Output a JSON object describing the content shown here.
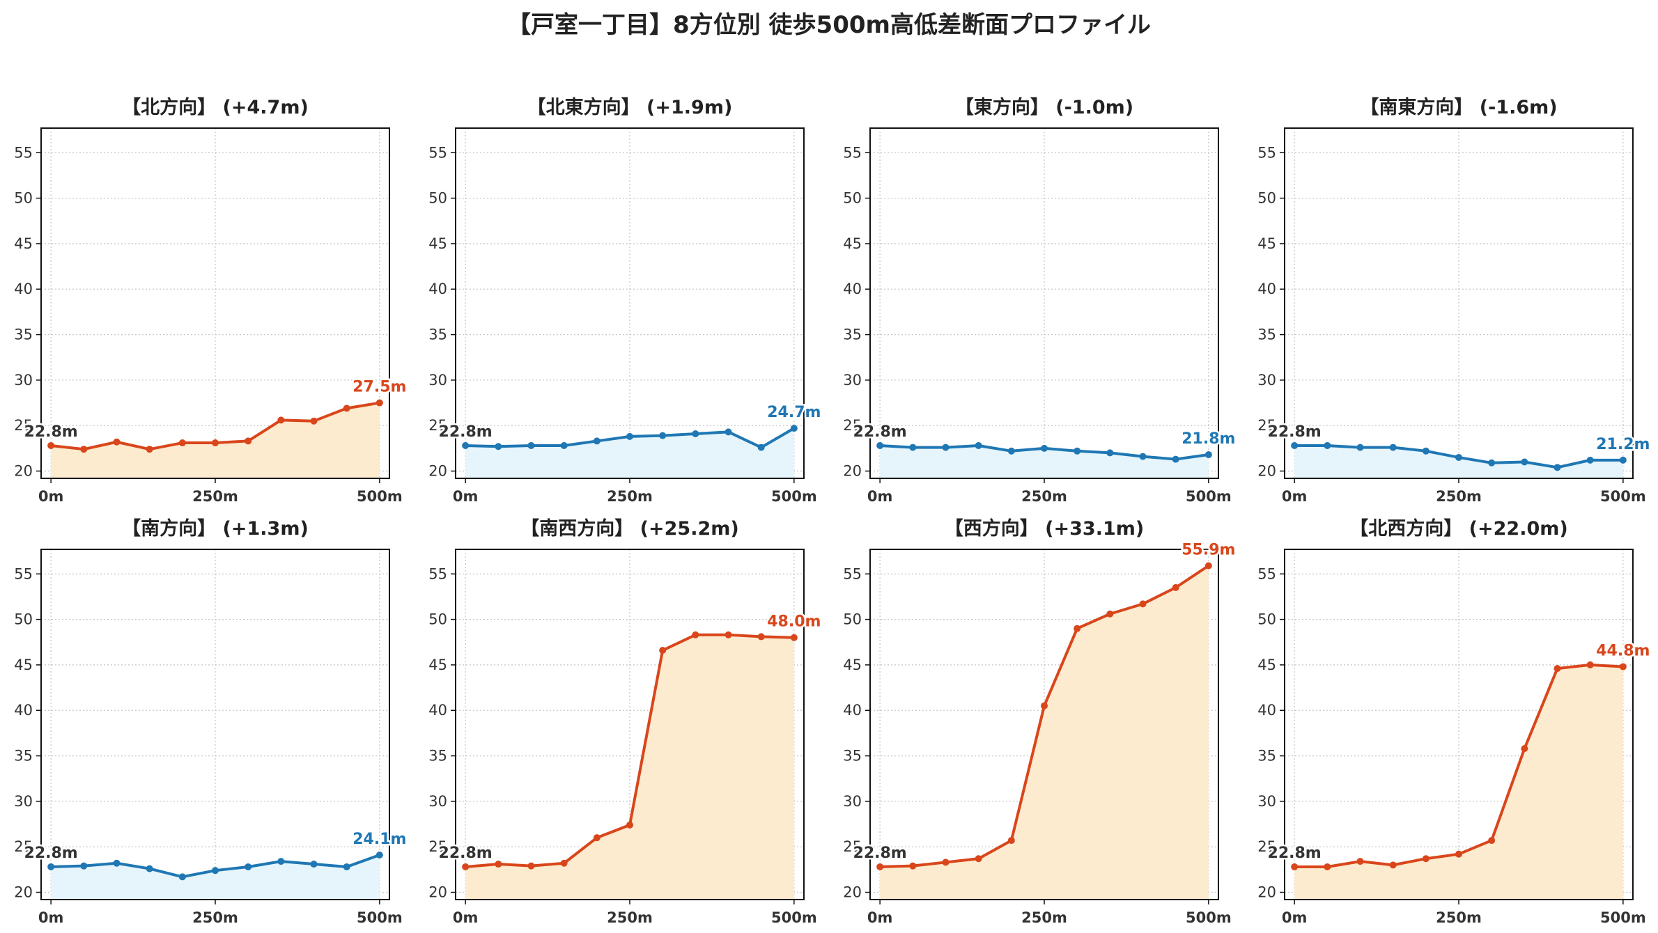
{
  "title": "【戸室一丁目】8方位別 徒歩500m高低差断面プロファイル",
  "colors": {
    "up_line": "#d9461b",
    "up_fill": "#fdebcf",
    "down_line": "#1f77b4",
    "down_fill": "#e6f5fb",
    "start_label": "#333333"
  },
  "chart_data": [
    {
      "type": "area",
      "title": "【北方向】 (+4.7m)",
      "trend": "up",
      "x": [
        0,
        50,
        100,
        150,
        200,
        250,
        300,
        350,
        400,
        450,
        500
      ],
      "y": [
        22.8,
        22.4,
        23.2,
        22.4,
        23.1,
        23.1,
        23.3,
        25.6,
        25.5,
        26.9,
        27.5
      ],
      "start_label": "22.8m",
      "end_label": "27.5m",
      "xticks": [
        0,
        250,
        500
      ],
      "xtick_labels": [
        "0m",
        "250m",
        "500m"
      ],
      "yticks": [
        20,
        25,
        30,
        35,
        40,
        45,
        50,
        55
      ],
      "xlim": [
        -15,
        515
      ],
      "ylim": [
        19.2,
        57.7
      ],
      "grid": true
    },
    {
      "type": "area",
      "title": "【北東方向】 (+1.9m)",
      "trend": "down",
      "x": [
        0,
        50,
        100,
        150,
        200,
        250,
        300,
        350,
        400,
        450,
        500
      ],
      "y": [
        22.8,
        22.7,
        22.8,
        22.8,
        23.3,
        23.8,
        23.9,
        24.1,
        24.3,
        22.6,
        24.7
      ],
      "start_label": "22.8m",
      "end_label": "24.7m",
      "xticks": [
        0,
        250,
        500
      ],
      "xtick_labels": [
        "0m",
        "250m",
        "500m"
      ],
      "yticks": [
        20,
        25,
        30,
        35,
        40,
        45,
        50,
        55
      ],
      "xlim": [
        -15,
        515
      ],
      "ylim": [
        19.2,
        57.7
      ],
      "grid": true
    },
    {
      "type": "area",
      "title": "【東方向】 (-1.0m)",
      "trend": "down",
      "x": [
        0,
        50,
        100,
        150,
        200,
        250,
        300,
        350,
        400,
        450,
        500
      ],
      "y": [
        22.8,
        22.6,
        22.6,
        22.8,
        22.2,
        22.5,
        22.2,
        22.0,
        21.6,
        21.3,
        21.8
      ],
      "start_label": "22.8m",
      "end_label": "21.8m",
      "xticks": [
        0,
        250,
        500
      ],
      "xtick_labels": [
        "0m",
        "250m",
        "500m"
      ],
      "yticks": [
        20,
        25,
        30,
        35,
        40,
        45,
        50,
        55
      ],
      "xlim": [
        -15,
        515
      ],
      "ylim": [
        19.2,
        57.7
      ],
      "grid": true
    },
    {
      "type": "area",
      "title": "【南東方向】 (-1.6m)",
      "trend": "down",
      "x": [
        0,
        50,
        100,
        150,
        200,
        250,
        300,
        350,
        400,
        450,
        500
      ],
      "y": [
        22.8,
        22.8,
        22.6,
        22.6,
        22.2,
        21.5,
        20.9,
        21.0,
        20.4,
        21.2,
        21.2
      ],
      "start_label": "22.8m",
      "end_label": "21.2m",
      "xticks": [
        0,
        250,
        500
      ],
      "xtick_labels": [
        "0m",
        "250m",
        "500m"
      ],
      "yticks": [
        20,
        25,
        30,
        35,
        40,
        45,
        50,
        55
      ],
      "xlim": [
        -15,
        515
      ],
      "ylim": [
        19.2,
        57.7
      ],
      "grid": true
    },
    {
      "type": "area",
      "title": "【南方向】 (+1.3m)",
      "trend": "down",
      "x": [
        0,
        50,
        100,
        150,
        200,
        250,
        300,
        350,
        400,
        450,
        500
      ],
      "y": [
        22.8,
        22.9,
        23.2,
        22.6,
        21.7,
        22.4,
        22.8,
        23.4,
        23.1,
        22.8,
        24.1
      ],
      "start_label": "22.8m",
      "end_label": "24.1m",
      "xticks": [
        0,
        250,
        500
      ],
      "xtick_labels": [
        "0m",
        "250m",
        "500m"
      ],
      "yticks": [
        20,
        25,
        30,
        35,
        40,
        45,
        50,
        55
      ],
      "xlim": [
        -15,
        515
      ],
      "ylim": [
        19.2,
        57.7
      ],
      "grid": true
    },
    {
      "type": "area",
      "title": "【南西方向】 (+25.2m)",
      "trend": "up",
      "x": [
        0,
        50,
        100,
        150,
        200,
        250,
        300,
        350,
        400,
        450,
        500
      ],
      "y": [
        22.8,
        23.1,
        22.9,
        23.2,
        26.0,
        27.4,
        46.6,
        48.3,
        48.3,
        48.1,
        48.0
      ],
      "start_label": "22.8m",
      "end_label": "48.0m",
      "xticks": [
        0,
        250,
        500
      ],
      "xtick_labels": [
        "0m",
        "250m",
        "500m"
      ],
      "yticks": [
        20,
        25,
        30,
        35,
        40,
        45,
        50,
        55
      ],
      "xlim": [
        -15,
        515
      ],
      "ylim": [
        19.2,
        57.7
      ],
      "grid": true
    },
    {
      "type": "area",
      "title": "【西方向】 (+33.1m)",
      "trend": "up",
      "x": [
        0,
        50,
        100,
        150,
        200,
        250,
        300,
        350,
        400,
        450,
        500
      ],
      "y": [
        22.8,
        22.9,
        23.3,
        23.7,
        25.7,
        40.5,
        49.0,
        50.6,
        51.7,
        53.5,
        55.9
      ],
      "start_label": "22.8m",
      "end_label": "55.9m",
      "xticks": [
        0,
        250,
        500
      ],
      "xtick_labels": [
        "0m",
        "250m",
        "500m"
      ],
      "yticks": [
        20,
        25,
        30,
        35,
        40,
        45,
        50,
        55
      ],
      "xlim": [
        -15,
        515
      ],
      "ylim": [
        19.2,
        57.7
      ],
      "grid": true
    },
    {
      "type": "area",
      "title": "【北西方向】 (+22.0m)",
      "trend": "up",
      "x": [
        0,
        50,
        100,
        150,
        200,
        250,
        300,
        350,
        400,
        450,
        500
      ],
      "y": [
        22.8,
        22.8,
        23.4,
        23.0,
        23.7,
        24.2,
        25.7,
        35.8,
        44.6,
        45.0,
        44.8
      ],
      "start_label": "22.8m",
      "end_label": "44.8m",
      "xticks": [
        0,
        250,
        500
      ],
      "xtick_labels": [
        "0m",
        "250m",
        "500m"
      ],
      "yticks": [
        20,
        25,
        30,
        35,
        40,
        45,
        50,
        55
      ],
      "xlim": [
        -15,
        515
      ],
      "ylim": [
        19.2,
        57.7
      ],
      "grid": true
    }
  ]
}
